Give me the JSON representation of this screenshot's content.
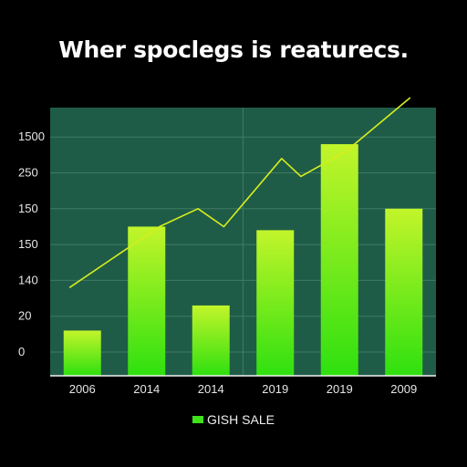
{
  "colors": {
    "background": "#000000",
    "plot_background": "#1f5c47",
    "grid": "#3f7a64",
    "bar_top": "#c2f52a",
    "bar_bottom": "#2fe00f",
    "line": "#d6ee1e",
    "legend_swatch": "#3ee21a"
  },
  "chart_data": {
    "type": "bar",
    "title": "Wher spoclegs is reaturecs.",
    "y_tick_labels": [
      "1500",
      "250",
      "150",
      "150",
      "140",
      "20",
      "0"
    ],
    "categories": [
      "2006",
      "2014",
      "2014",
      "2019",
      "2019",
      "2009"
    ],
    "ylim": [
      0,
      6
    ],
    "series": [
      {
        "name": "GISH SALE",
        "type": "bar",
        "values": [
          0.6,
          3.5,
          1.3,
          3.4,
          5.8,
          4.0
        ]
      },
      {
        "type": "line",
        "points": [
          [
            0.3,
            1.8
          ],
          [
            1.7,
            3.5
          ],
          [
            2.3,
            4.0
          ],
          [
            2.7,
            3.5
          ],
          [
            3.6,
            5.4
          ],
          [
            3.9,
            4.9
          ],
          [
            4.6,
            5.6
          ],
          [
            5.6,
            7.1
          ]
        ]
      }
    ],
    "grid": true,
    "legend": "bottom-center"
  }
}
